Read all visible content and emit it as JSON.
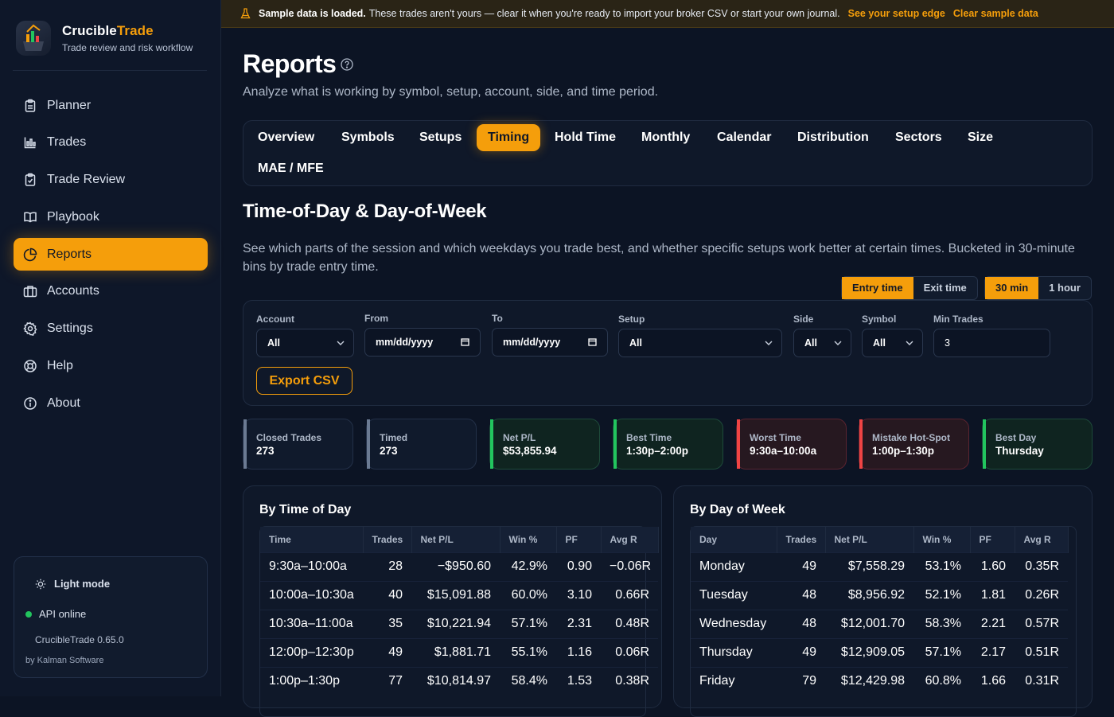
{
  "brand": {
    "name_a": "Crucible",
    "name_b": "Trade",
    "tagline": "Trade review and risk workflow"
  },
  "nav": {
    "items": [
      {
        "label": "Planner",
        "icon": "clipboard-icon"
      },
      {
        "label": "Trades",
        "icon": "chart-icon"
      },
      {
        "label": "Trade Review",
        "icon": "clipboard-check-icon"
      },
      {
        "label": "Playbook",
        "icon": "book-icon"
      },
      {
        "label": "Reports",
        "icon": "pie-chart-icon",
        "active": true
      },
      {
        "label": "Accounts",
        "icon": "briefcase-icon"
      },
      {
        "label": "Settings",
        "icon": "gear-icon"
      },
      {
        "label": "Help",
        "icon": "lifebuoy-icon"
      },
      {
        "label": "About",
        "icon": "info-icon"
      }
    ]
  },
  "footer": {
    "light_mode": "Light mode",
    "api_status": "API online",
    "version": "CrucibleTrade 0.65.0",
    "byline": "by Kalman Software"
  },
  "banner": {
    "bold": "Sample data is loaded.",
    "message": "These trades aren't yours — clear it when you're ready to import your broker CSV or start your own journal.",
    "link1": "See your setup edge",
    "link2": "Clear sample data"
  },
  "header": {
    "title": "Reports",
    "subtitle": "Analyze what is working by symbol, setup, account, side, and time period."
  },
  "tabs": [
    "Overview",
    "Symbols",
    "Setups",
    "Timing",
    "Hold Time",
    "Monthly",
    "Calendar",
    "Distribution",
    "Sectors",
    "Size",
    "MAE / MFE"
  ],
  "active_tab": "Timing",
  "section": {
    "title": "Time-of-Day & Day-of-Week",
    "description": "See which parts of the session and which weekdays you trade best, and whether specific setups work better at certain times. Bucketed in 30-minute bins by trade entry time."
  },
  "toggles": {
    "time_basis": [
      "Entry time",
      "Exit time"
    ],
    "time_basis_selected": "Entry time",
    "bucket": [
      "30 min",
      "1 hour"
    ],
    "bucket_selected": "30 min"
  },
  "filters": {
    "account": {
      "label": "Account",
      "value": "All"
    },
    "from": {
      "label": "From",
      "value": "mm/dd/yyyy"
    },
    "to": {
      "label": "To",
      "value": "mm/dd/yyyy"
    },
    "setup": {
      "label": "Setup",
      "value": "All"
    },
    "side": {
      "label": "Side",
      "value": "All"
    },
    "symbol": {
      "label": "Symbol",
      "value": "All"
    },
    "min_trades": {
      "label": "Min Trades",
      "value": "3"
    },
    "export_label": "Export CSV"
  },
  "stats": [
    {
      "label": "Closed Trades",
      "value": "273",
      "tone": "neutral"
    },
    {
      "label": "Timed",
      "value": "273",
      "tone": "neutral"
    },
    {
      "label": "Net P/L",
      "value": "$53,855.94",
      "tone": "green"
    },
    {
      "label": "Best Time",
      "value": "1:30p–2:00p",
      "tone": "green"
    },
    {
      "label": "Worst Time",
      "value": "9:30a–10:00a",
      "tone": "red"
    },
    {
      "label": "Mistake Hot-Spot",
      "value": "1:00p–1:30p",
      "tone": "red"
    },
    {
      "label": "Best Day",
      "value": "Thursday",
      "tone": "green"
    }
  ],
  "time_table": {
    "title": "By Time of Day",
    "columns": [
      "Time",
      "Trades",
      "Net P/L",
      "Win %",
      "PF",
      "Avg R"
    ],
    "rows": [
      [
        "9:30a–10:00a",
        "28",
        "−$950.60",
        "42.9%",
        "0.90",
        "−0.06R"
      ],
      [
        "10:00a–10:30a",
        "40",
        "$15,091.88",
        "60.0%",
        "3.10",
        "0.66R"
      ],
      [
        "10:30a–11:00a",
        "35",
        "$10,221.94",
        "57.1%",
        "2.31",
        "0.48R"
      ],
      [
        "12:00p–12:30p",
        "49",
        "$1,881.71",
        "55.1%",
        "1.16",
        "0.06R"
      ],
      [
        "1:00p–1:30p",
        "77",
        "$10,814.97",
        "58.4%",
        "1.53",
        "0.38R"
      ]
    ]
  },
  "day_table": {
    "title": "By Day of Week",
    "columns": [
      "Day",
      "Trades",
      "Net P/L",
      "Win %",
      "PF",
      "Avg R"
    ],
    "rows": [
      [
        "Monday",
        "49",
        "$7,558.29",
        "53.1%",
        "1.60",
        "0.35R"
      ],
      [
        "Tuesday",
        "48",
        "$8,956.92",
        "52.1%",
        "1.81",
        "0.26R"
      ],
      [
        "Wednesday",
        "48",
        "$12,001.70",
        "58.3%",
        "2.21",
        "0.57R"
      ],
      [
        "Thursday",
        "49",
        "$12,909.05",
        "57.1%",
        "2.17",
        "0.51R"
      ],
      [
        "Friday",
        "79",
        "$12,429.98",
        "60.8%",
        "1.66",
        "0.31R"
      ]
    ]
  }
}
